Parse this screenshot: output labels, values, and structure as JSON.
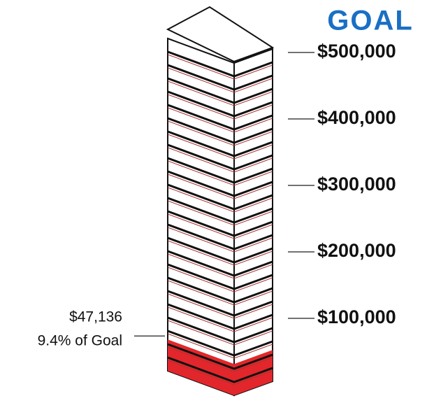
{
  "chart_data": {
    "type": "tower",
    "title": "GOAL",
    "color": "#e3262b",
    "values": [
      47136
    ],
    "value_labels": [
      "$47,136"
    ],
    "annotation": "9.4% of Goal",
    "ylim": [
      0,
      500000
    ],
    "yticks": [
      {
        "value": 100000,
        "label": "$100,000"
      },
      {
        "value": 200000,
        "label": "$200,000"
      },
      {
        "value": 300000,
        "label": "$300,000"
      },
      {
        "value": 400000,
        "label": "$400,000"
      },
      {
        "value": 500000,
        "label": "$500,000"
      }
    ]
  }
}
